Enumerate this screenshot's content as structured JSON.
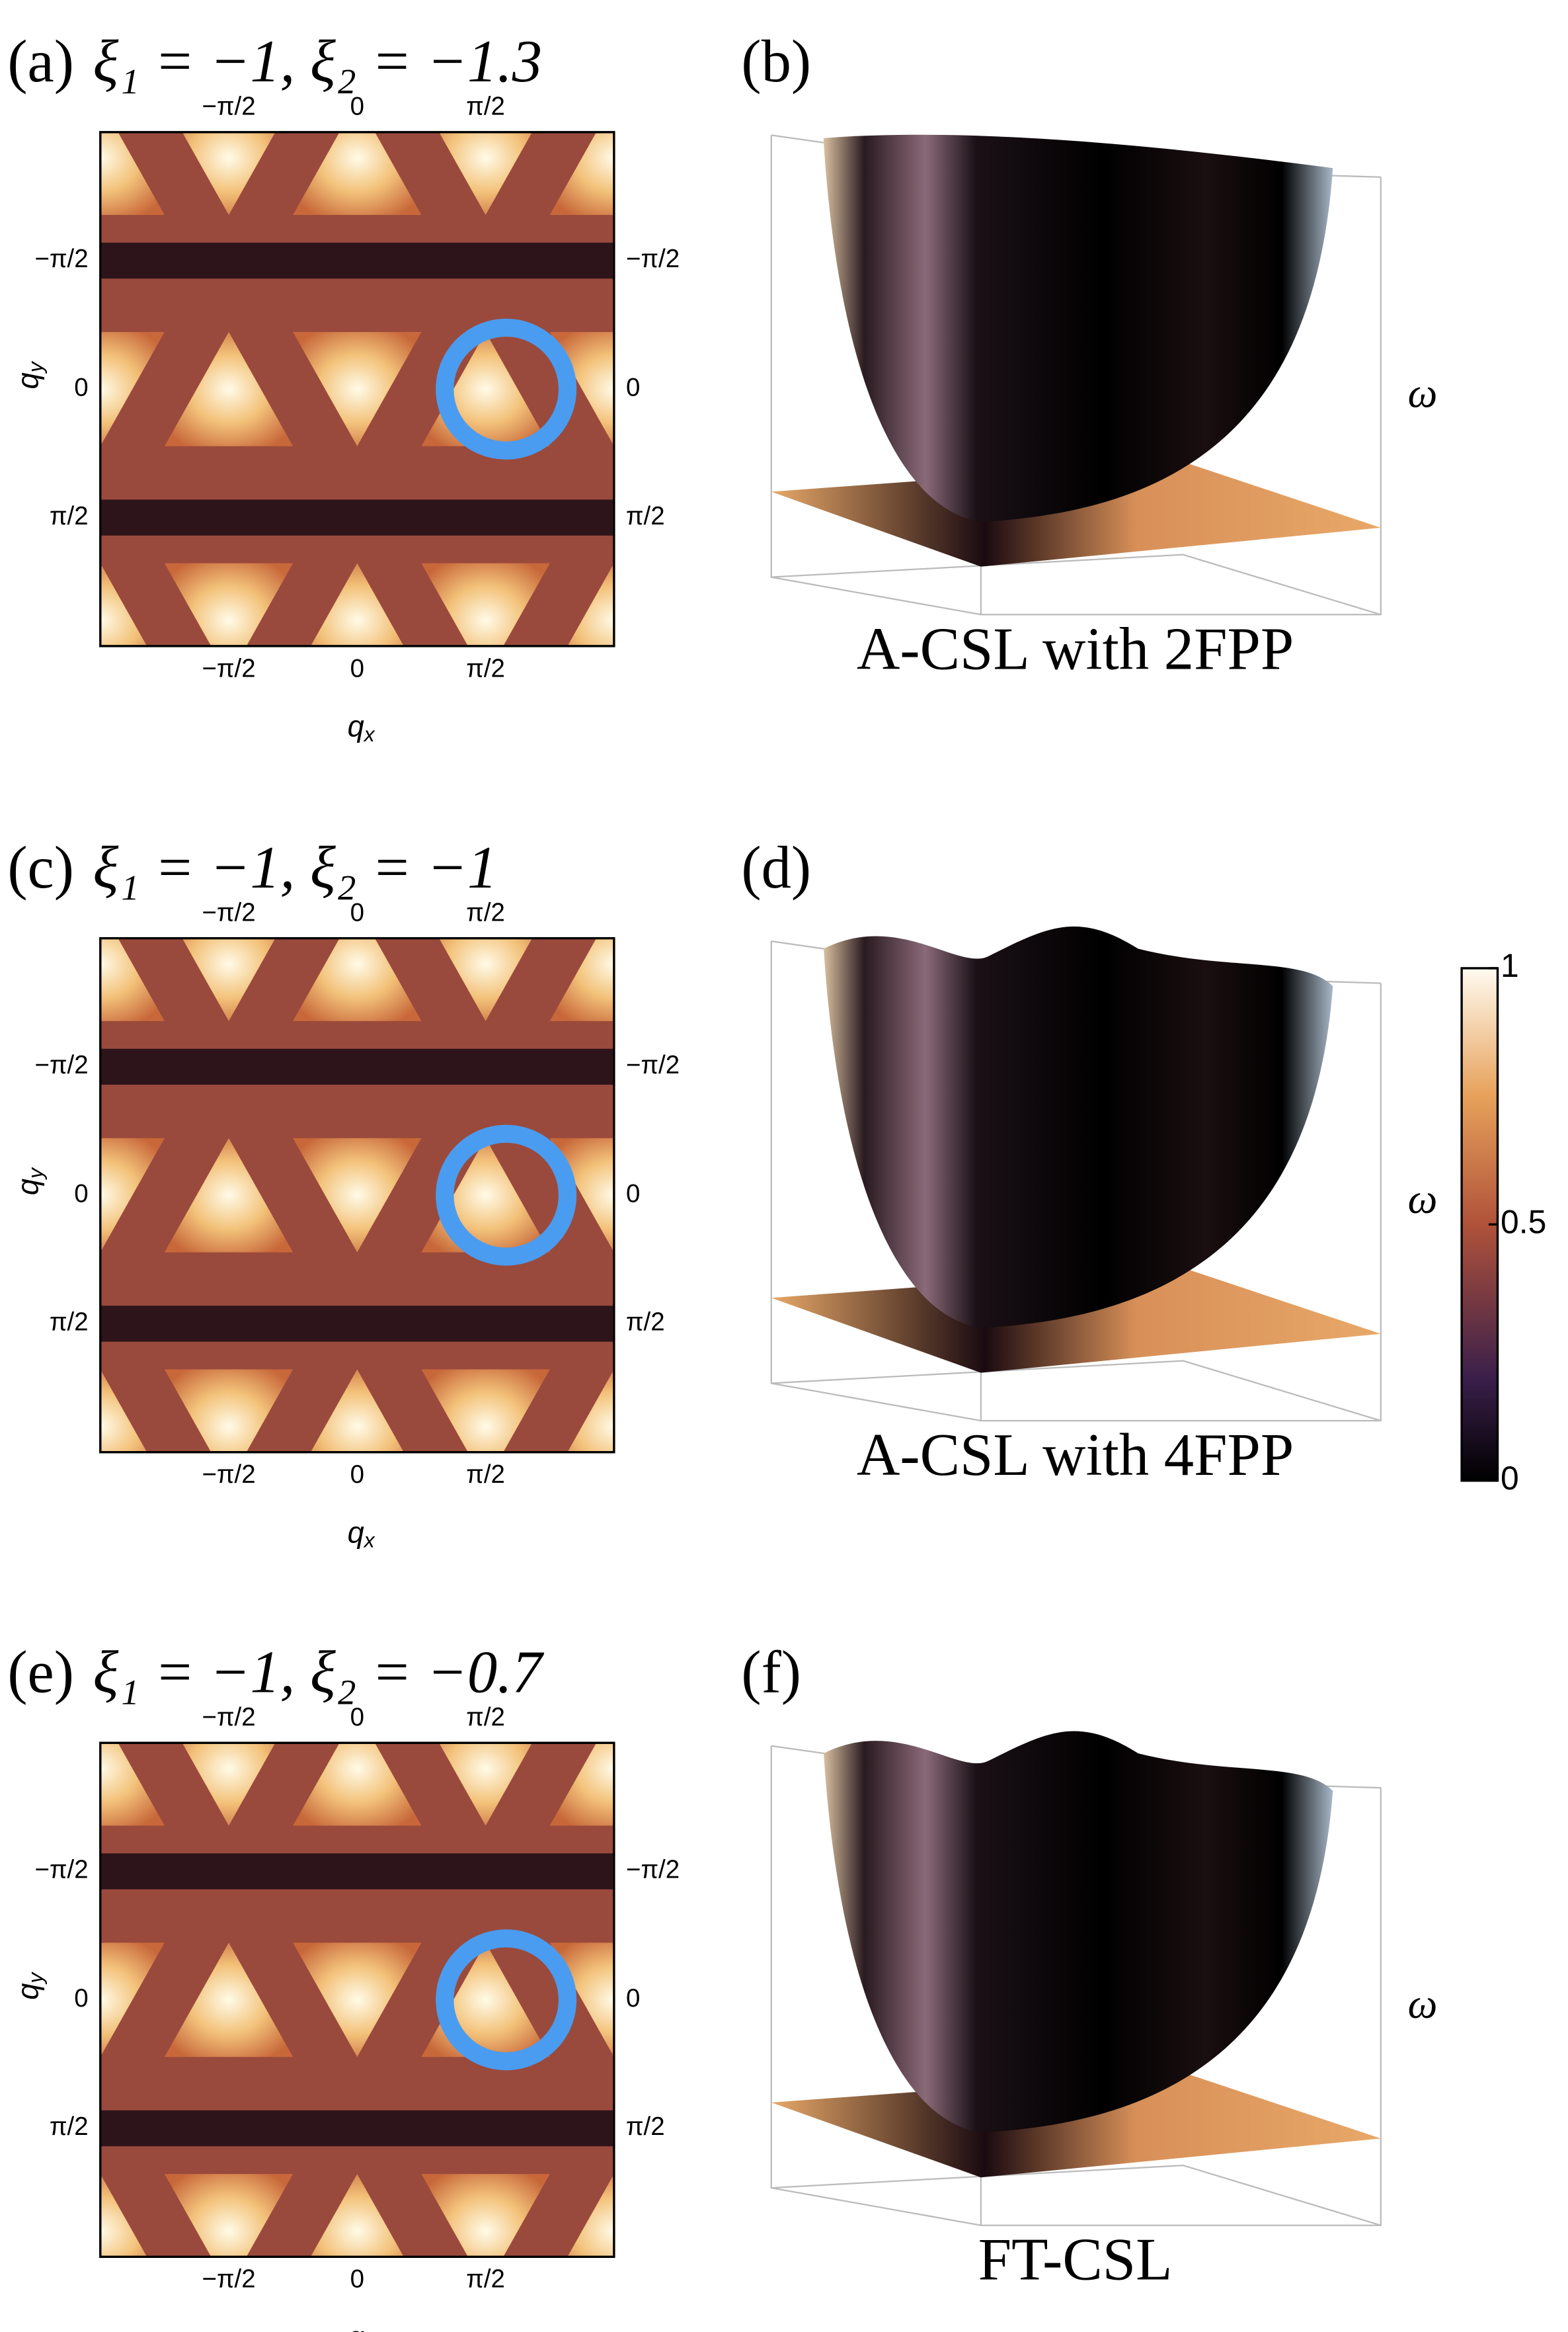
{
  "panels": [
    {
      "label": "(a)",
      "title": "ξ₁ = −1,  ξ₂ = −1.3",
      "label3d": "(b)",
      "caption": "A-CSL with 2FPP"
    },
    {
      "label": "(c)",
      "title": "ξ₁ = −1,  ξ₂ = −1",
      "label3d": "(d)",
      "caption": "A-CSL with 4FPP"
    },
    {
      "label": "(e)",
      "title": "ξ₁ = −1,  ξ₂ = −0.7",
      "label3d": "(f)",
      "caption": "FT-CSL"
    }
  ],
  "ticks": [
    "−π/2",
    "0",
    "π/2"
  ],
  "xlabel": {
    "base": "q",
    "sub": "x"
  },
  "ylabel": {
    "base": "q",
    "sub": "y"
  },
  "zlabel": "ω",
  "colorbar": {
    "ticks": [
      0,
      0.5,
      1
    ],
    "range": [
      0,
      1
    ]
  }
}
